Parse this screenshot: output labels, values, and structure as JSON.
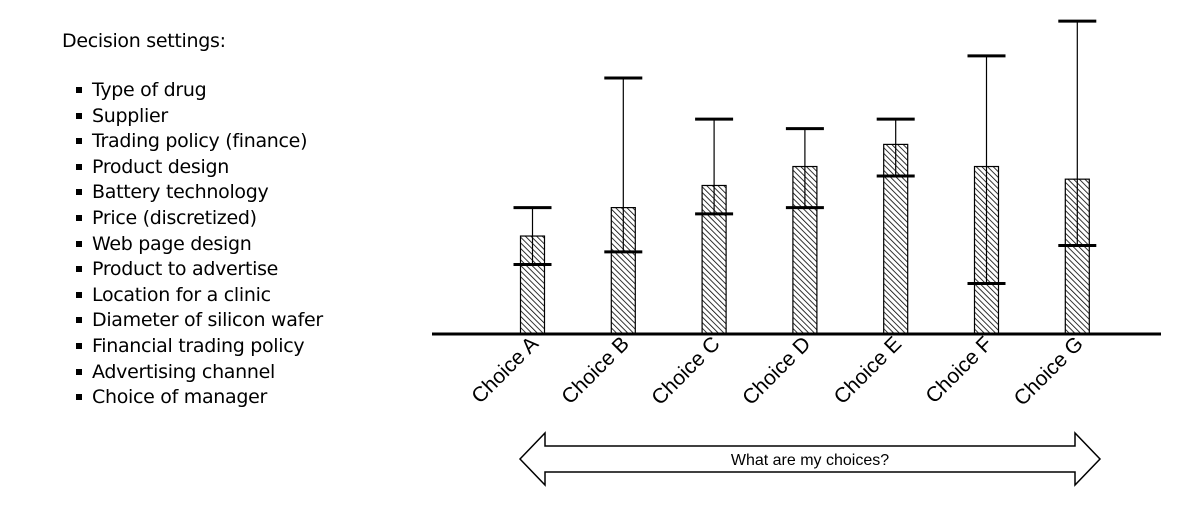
{
  "settings": {
    "title": "Decision settings:",
    "items": [
      "Type of drug",
      "Supplier",
      "Trading policy (finance)",
      "Product design",
      "Battery technology",
      "Price (discretized)",
      "Web page design",
      "Product to advertise",
      "Location for a clinic",
      "Diameter of silicon wafer",
      "Financial trading policy",
      "Advertising channel",
      "Choice of manager"
    ]
  },
  "chart_data": {
    "type": "bar",
    "categories": [
      "Choice A",
      "Choice B",
      "Choice C",
      "Choice D",
      "Choice E",
      "Choice F",
      "Choice G"
    ],
    "values": [
      3.1,
      4.0,
      4.7,
      5.3,
      6.0,
      5.3,
      4.9
    ],
    "error_low": [
      2.2,
      2.6,
      3.8,
      4.0,
      5.0,
      1.6,
      2.8
    ],
    "error_high": [
      4.0,
      8.1,
      6.8,
      6.5,
      6.8,
      8.8,
      9.9
    ],
    "ylim": [
      0,
      10
    ],
    "xlabel": "",
    "ylabel": "",
    "title": "",
    "bar_pattern": "diagonal-hatch",
    "arrow_label": "What are my choices?"
  }
}
